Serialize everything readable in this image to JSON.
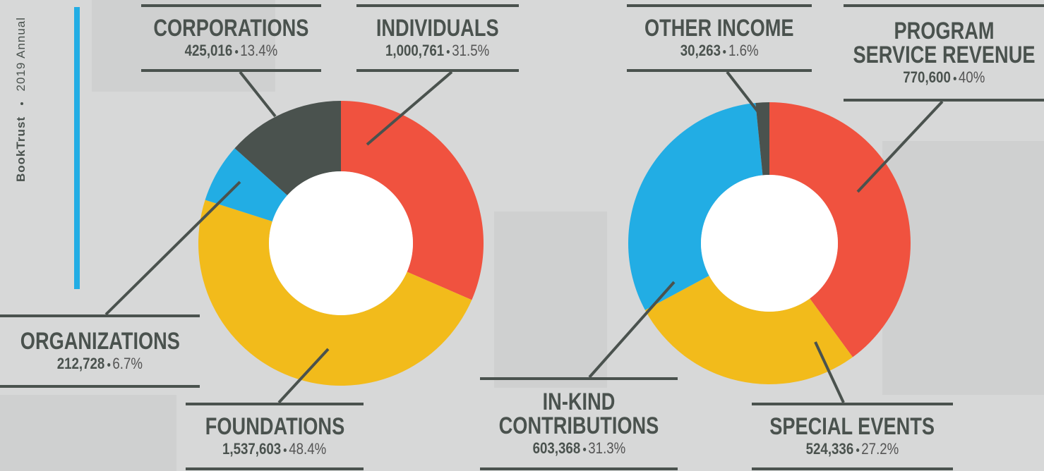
{
  "sidebar": {
    "org": "BookTrust",
    "title": "2019 Annual"
  },
  "chart_data": [
    {
      "type": "donut",
      "categories": [
        "INDIVIDUALS",
        "FOUNDATIONS",
        "ORGANIZATIONS",
        "CORPORATIONS"
      ],
      "values": [
        1000761,
        1537603,
        212728,
        425016
      ],
      "value_labels": [
        "1,000,761",
        "1,537,603",
        "212,728",
        "425,016"
      ],
      "percents": [
        31.5,
        48.4,
        6.7,
        13.4
      ],
      "percent_labels": [
        "31.5%",
        "48.4%",
        "6.7%",
        "13.4%"
      ],
      "colors": [
        "#f0523f",
        "#f2bb1b",
        "#22ade4",
        "#4a524e"
      ]
    },
    {
      "type": "donut",
      "categories": [
        "PROGRAM SERVICE REVENUE",
        "SPECIAL EVENTS",
        "IN-KIND CONTRIBUTIONS",
        "OTHER INCOME"
      ],
      "values": [
        770600,
        524336,
        603368,
        30263
      ],
      "value_labels": [
        "770,600",
        "524,336",
        "603,368",
        "30,263"
      ],
      "percents": [
        40,
        27.2,
        31.3,
        1.6
      ],
      "percent_labels": [
        "40%",
        "27.2%",
        "31.3%",
        "1.6%"
      ],
      "colors": [
        "#f0523f",
        "#f2bb1b",
        "#22ade4",
        "#4a524e"
      ]
    }
  ]
}
